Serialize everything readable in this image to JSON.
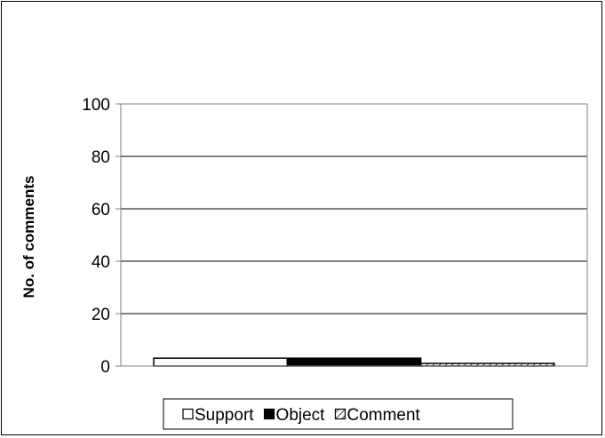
{
  "chart_data": {
    "type": "bar",
    "title": "",
    "xlabel": "",
    "ylabel": "No. of comments",
    "ylim": [
      0,
      100
    ],
    "yticks": [
      0,
      20,
      40,
      60,
      80,
      100
    ],
    "grid": true,
    "legend_position": "bottom",
    "categories": [
      ""
    ],
    "series": [
      {
        "name": "Support",
        "values": [
          3
        ],
        "fill": "#ffffff",
        "pattern": "solid"
      },
      {
        "name": "Object",
        "values": [
          3
        ],
        "fill": "#000000",
        "pattern": "solid"
      },
      {
        "name": "Comment",
        "values": [
          1
        ],
        "fill": "#ffffff",
        "pattern": "diagonal-hatch"
      }
    ]
  }
}
